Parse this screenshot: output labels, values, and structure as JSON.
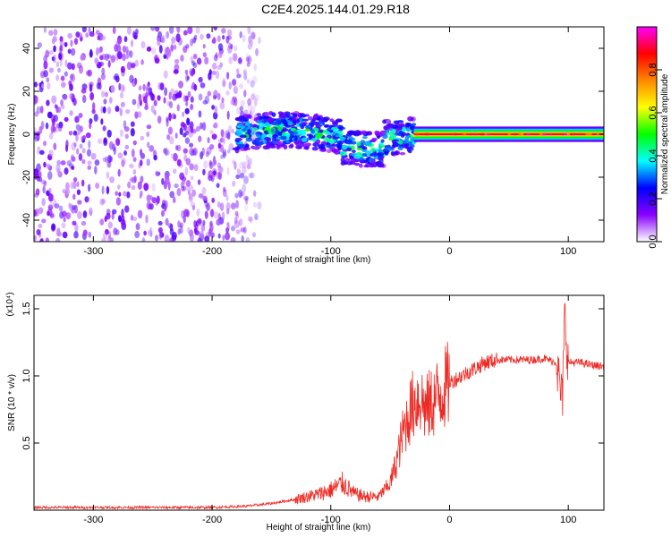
{
  "title": "C2E4.2025.144.01.29.R18",
  "colors": {
    "spec_purple": "#7a00ff",
    "snr_line": "#ee2a24",
    "axis": "#000000"
  },
  "chart_data": [
    {
      "type": "heatmap",
      "name": "spectrogram",
      "xlabel": "Height of straight line (km)",
      "ylabel": "Frequency (Hz)",
      "xlim": [
        -350,
        130
      ],
      "ylim": [
        -50,
        50
      ],
      "x_ticks": [
        -300,
        -200,
        -100,
        0,
        100
      ],
      "y_ticks": [
        -40,
        -20,
        0,
        20,
        40
      ],
      "colorbar": {
        "label": "Normalized spectral amplitude",
        "range": [
          0,
          1
        ],
        "ticks": [
          0.0,
          0.2,
          0.4,
          0.6,
          0.8
        ],
        "tick_labels": [
          "0.0",
          "0.2",
          "0.4",
          "0.6",
          "0.8"
        ],
        "colormap": [
          "#ffffff",
          "#8800ff",
          "#0000ff",
          "#00ffff",
          "#00ff00",
          "#ffff00",
          "#ff8800",
          "#ff0000",
          "#ff00ff"
        ]
      },
      "features": [
        {
          "region": "noise",
          "x_range": [
            -350,
            -180
          ],
          "freq_range": [
            -50,
            50
          ],
          "amplitude": 0.15
        },
        {
          "region": "signal_band",
          "x_range": [
            -180,
            -30
          ],
          "freq_center": 0,
          "freq_halfwidth": 8,
          "amplitude": 0.4
        },
        {
          "region": "carrier",
          "x_range": [
            -30,
            130
          ],
          "freq_center": 0,
          "freq_halfwidth": 2,
          "amplitude": 0.9
        }
      ]
    },
    {
      "type": "line",
      "name": "snr",
      "xlabel": "Height of straight line (km)",
      "ylabel": "SNR (10 * v/v)",
      "y_multiplier": "(x10⁴)",
      "xlim": [
        -350,
        130
      ],
      "ylim": [
        0,
        1.6
      ],
      "x_ticks": [
        -300,
        -200,
        -100,
        0,
        100
      ],
      "y_ticks": [
        0.5,
        1.0,
        1.5
      ],
      "y_tick_labels": [
        "0.5",
        "1.0",
        "1.5"
      ],
      "series": [
        {
          "x": [
            -350,
            -300,
            -250,
            -200,
            -170,
            -150,
            -130,
            -110,
            -100,
            -90,
            -80,
            -70,
            -60,
            -50,
            -45,
            -40,
            -35,
            -30,
            -25,
            -20,
            -15,
            -10,
            -5,
            0,
            10,
            20,
            30,
            40,
            50,
            60,
            70,
            80,
            90,
            95,
            97,
            100,
            110,
            120,
            130
          ],
          "values": [
            0.02,
            0.02,
            0.02,
            0.02,
            0.03,
            0.05,
            0.08,
            0.12,
            0.15,
            0.2,
            0.12,
            0.1,
            0.1,
            0.2,
            0.35,
            0.55,
            0.7,
            0.8,
            0.85,
            0.75,
            0.8,
            0.85,
            0.9,
            0.95,
            1.0,
            1.05,
            1.1,
            1.12,
            1.12,
            1.12,
            1.12,
            1.13,
            1.1,
            0.8,
            1.45,
            1.1,
            1.1,
            1.08,
            1.07
          ]
        }
      ]
    }
  ]
}
